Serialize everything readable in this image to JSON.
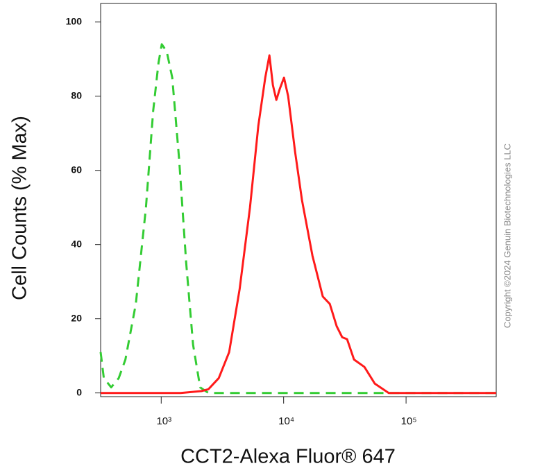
{
  "chart_data": {
    "type": "line",
    "xlabel": "CCT2-Alexa Fluor® 647",
    "ylabel": "Cell Counts (% Max)",
    "annotation": "Copyright ©2024 Genuin Biotechnologies LLC",
    "xscale": "log",
    "xlim": [
      320,
      545000
    ],
    "ylim": [
      -1,
      105
    ],
    "xticks": [
      {
        "value": 1000,
        "label": "10³"
      },
      {
        "value": 10000,
        "label": "10⁴"
      },
      {
        "value": 100000,
        "label": "10⁵"
      }
    ],
    "yticks": [
      0,
      20,
      40,
      60,
      80,
      100
    ],
    "series": [
      {
        "color": "#33cc33",
        "dashed": true,
        "x": [
          320,
          340,
          390,
          450,
          510,
          620,
          750,
          860,
          950,
          1010,
          1110,
          1230,
          1400,
          1600,
          1820,
          2080,
          2430,
          545000
        ],
        "values": [
          11,
          4,
          1.5,
          4,
          9,
          24,
          50,
          76,
          89,
          94,
          92,
          85,
          63,
          35,
          13,
          1.5,
          0,
          0
        ]
      },
      {
        "color": "#ff1a1a",
        "dashed": false,
        "x": [
          320,
          1440,
          2130,
          2430,
          2950,
          3590,
          4370,
          5310,
          6210,
          7080,
          7650,
          8170,
          8720,
          9310,
          10070,
          10890,
          12400,
          14120,
          17180,
          20890,
          23810,
          27100,
          30110,
          32980,
          37570,
          45680,
          55560,
          72130,
          93680,
          545000
        ],
        "values": [
          0,
          0,
          0.5,
          1,
          4,
          11,
          28,
          50,
          72,
          85,
          91,
          83,
          79,
          82,
          85,
          80,
          65,
          52,
          37,
          26,
          24,
          18,
          15,
          14.5,
          9,
          7,
          2.5,
          0,
          0,
          0
        ]
      }
    ]
  }
}
